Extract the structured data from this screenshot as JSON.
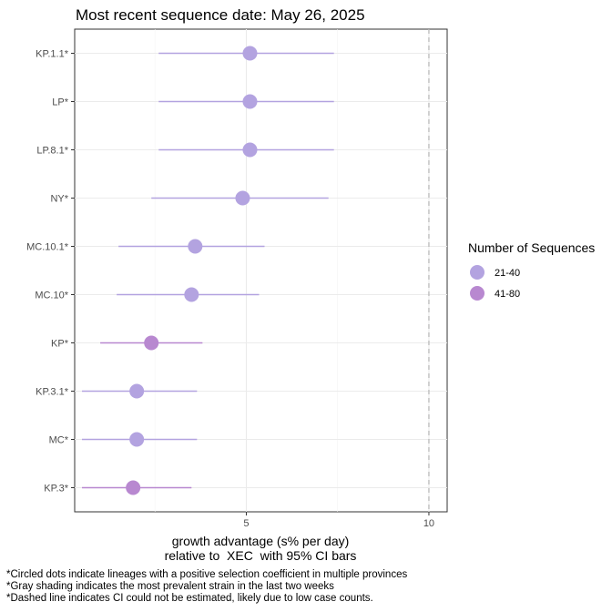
{
  "chart_data": {
    "type": "scatter",
    "title": "Most recent sequence date: May 26, 2025",
    "xlabel_line1": "growth advantage (s% per day)",
    "xlabel_line2": "relative to  XEC  with 95% CI bars",
    "x_ticks": [
      5,
      10
    ],
    "xlim": [
      0.3,
      10.5
    ],
    "reference_line_x": 10,
    "grid": true,
    "legend": {
      "title": "Number of Sequences",
      "position": "right",
      "items": [
        {
          "label": "21-40",
          "color": "#b3a3e0"
        },
        {
          "label": "41-80",
          "color": "#b888d0"
        }
      ]
    },
    "categories": [
      "KP.1.1*",
      "LP*",
      "LP.8.1*",
      "NY*",
      "MC.10.1*",
      "MC.10*",
      "KP*",
      "KP.3.1*",
      "MC*",
      "KP.3*"
    ],
    "points": [
      {
        "lineage": "KP.1.1*",
        "estimate": 5.1,
        "ci_low": 2.6,
        "ci_high": 7.4,
        "sequences": "21-40"
      },
      {
        "lineage": "LP*",
        "estimate": 5.1,
        "ci_low": 2.6,
        "ci_high": 7.4,
        "sequences": "21-40"
      },
      {
        "lineage": "LP.8.1*",
        "estimate": 5.1,
        "ci_low": 2.6,
        "ci_high": 7.4,
        "sequences": "21-40"
      },
      {
        "lineage": "NY*",
        "estimate": 4.9,
        "ci_low": 2.4,
        "ci_high": 7.25,
        "sequences": "21-40"
      },
      {
        "lineage": "MC.10.1*",
        "estimate": 3.6,
        "ci_low": 1.5,
        "ci_high": 5.5,
        "sequences": "21-40"
      },
      {
        "lineage": "MC.10*",
        "estimate": 3.5,
        "ci_low": 1.45,
        "ci_high": 5.35,
        "sequences": "21-40"
      },
      {
        "lineage": "KP*",
        "estimate": 2.4,
        "ci_low": 1.0,
        "ci_high": 3.8,
        "sequences": "41-80"
      },
      {
        "lineage": "KP.3.1*",
        "estimate": 2.0,
        "ci_low": 0.5,
        "ci_high": 3.65,
        "sequences": "21-40"
      },
      {
        "lineage": "MC*",
        "estimate": 2.0,
        "ci_low": 0.5,
        "ci_high": 3.65,
        "sequences": "21-40"
      },
      {
        "lineage": "KP.3*",
        "estimate": 1.9,
        "ci_low": 0.5,
        "ci_high": 3.5,
        "sequences": "41-80"
      }
    ]
  },
  "footnotes": [
    "*Circled dots indicate lineages with a positive selection coefficient in multiple provinces",
    "*Gray shading indicates the most prevalent strain in the last two weeks",
    "*Dashed line indicates CI could not be estimated, likely due to low case counts."
  ]
}
